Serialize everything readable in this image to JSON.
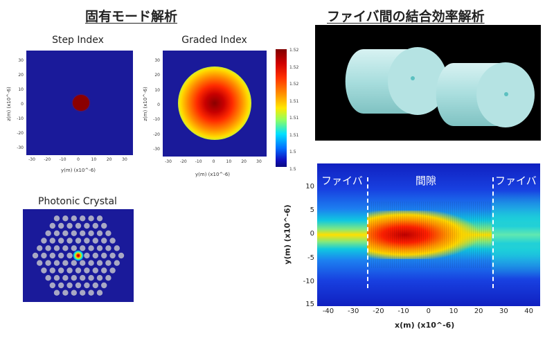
{
  "headings": {
    "mode_analysis": "固有モード解析",
    "coupling_analysis": "ファイバ間の結合効率解析"
  },
  "step_index": {
    "title": "Step Index",
    "xlabel": "y(m) (x10^-6)",
    "ylabel": "z(m) (x10^-6)",
    "xticks": [
      "-30",
      "-20",
      "-10",
      "0",
      "10",
      "20",
      "30"
    ],
    "yticks": [
      "30",
      "20",
      "10",
      "0",
      "-10",
      "-20",
      "-30"
    ]
  },
  "graded_index": {
    "title": "Graded Index",
    "xlabel": "y(m) (x10^-6)",
    "ylabel": "z(m) (x10^-6)",
    "xticks": [
      "-30",
      "-20",
      "-10",
      "0",
      "10",
      "20",
      "30"
    ],
    "yticks": [
      "30",
      "20",
      "10",
      "0",
      "-10",
      "-20",
      "-30"
    ],
    "colorbar_ticks": [
      "1.52",
      "1.52",
      "1.52",
      "1.51",
      "1.51",
      "1.51",
      "1.5",
      "1.5"
    ]
  },
  "photonic_crystal": {
    "title": "Photonic Crystal"
  },
  "coupling_plot": {
    "labels": {
      "fiber_left": "ファイバ",
      "gap": "間隙",
      "fiber_right": "ファイバ"
    },
    "xlabel": "x(m) (x10^-6)",
    "ylabel": "y(m) (x10^-6)",
    "xticks": [
      "-40",
      "-30",
      "-20",
      "-10",
      "0",
      "10",
      "20",
      "30",
      "40"
    ],
    "yticks": [
      "10",
      "5",
      "0",
      "-5",
      "-10",
      "15"
    ]
  },
  "colors": {
    "plot_background": "#1a1a9a",
    "core": "#8b0000",
    "cylinder": "#b7e4e4"
  }
}
